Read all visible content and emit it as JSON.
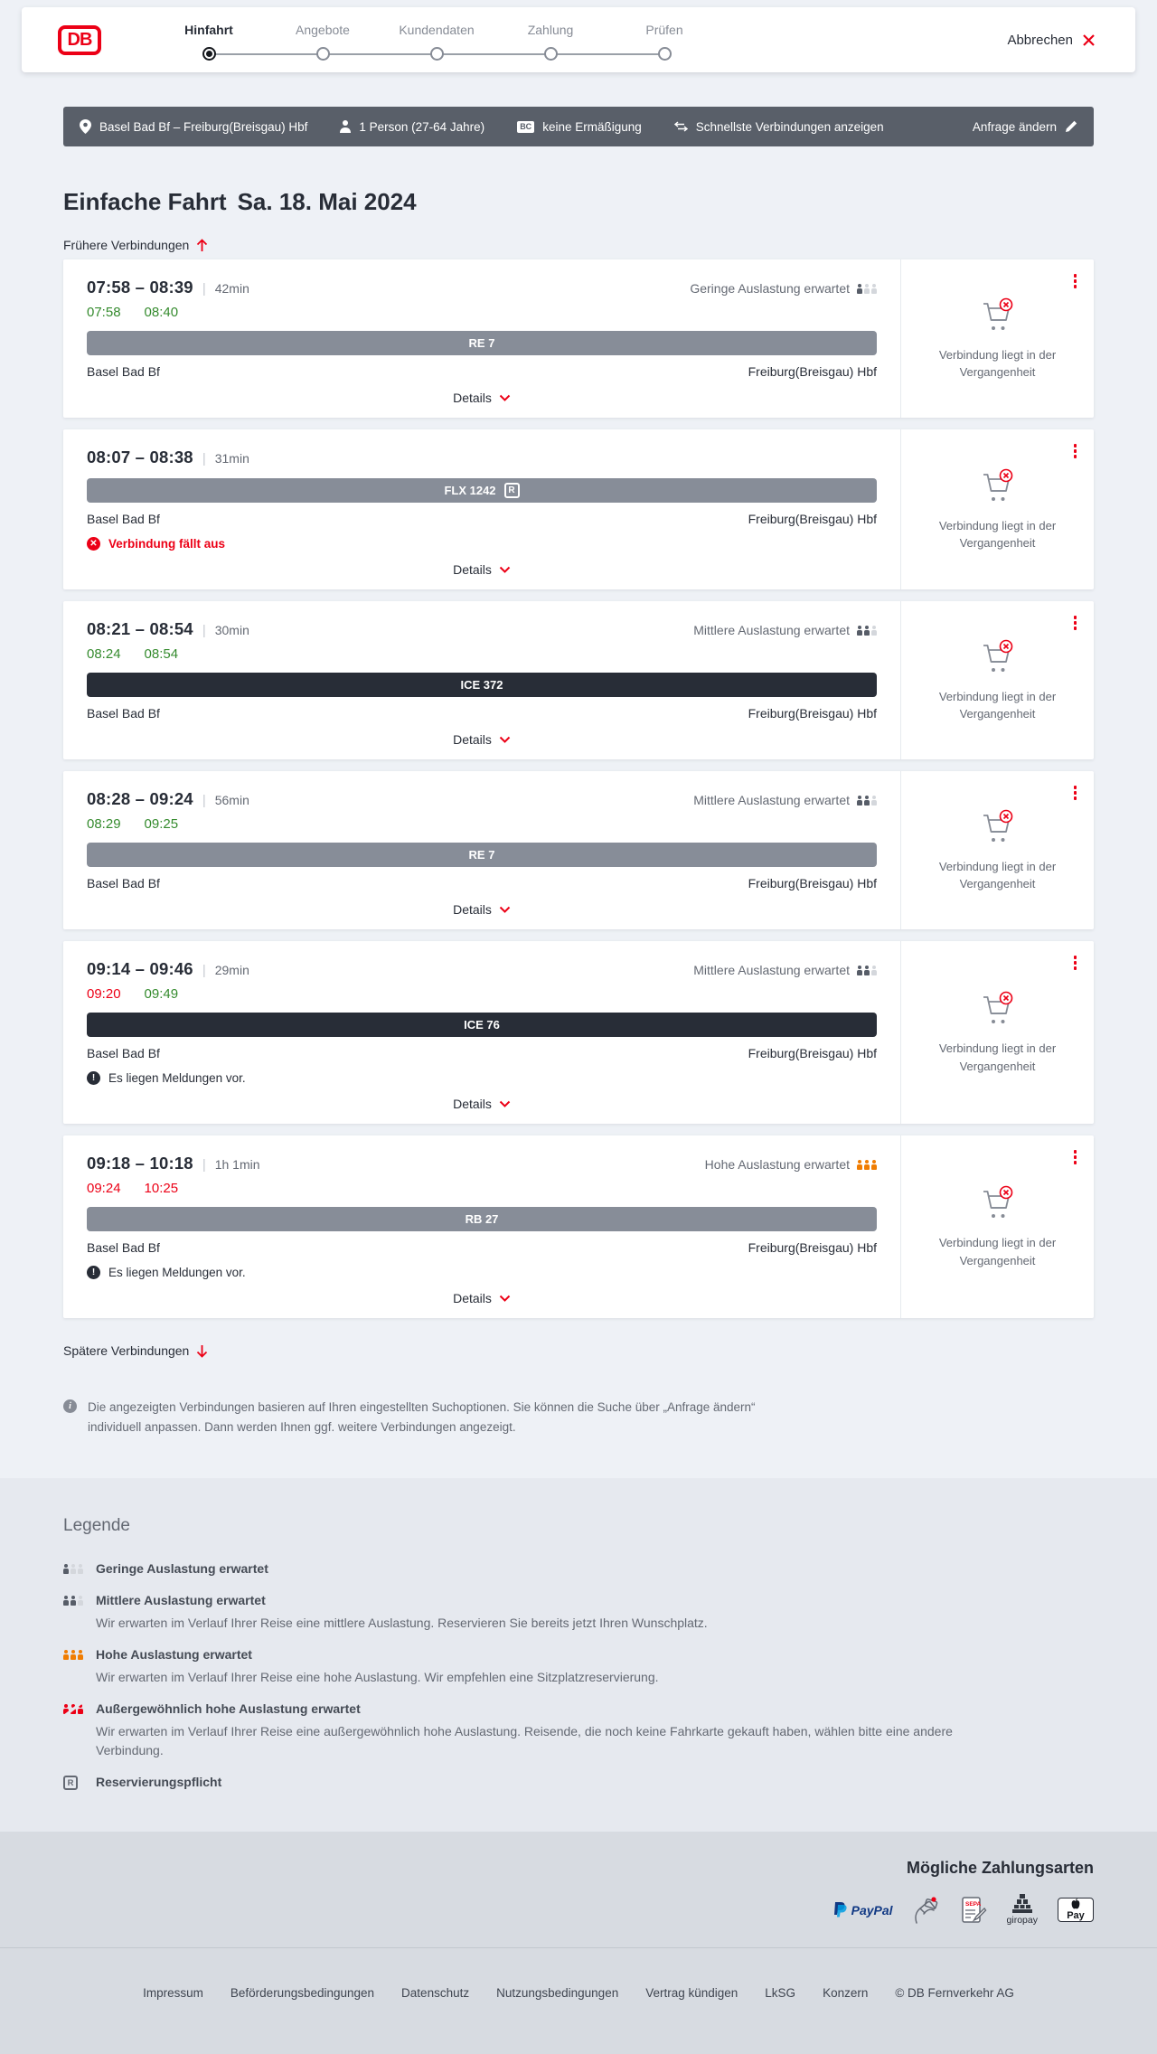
{
  "header": {
    "logo": "DB",
    "steps": [
      {
        "label": "Hinfahrt",
        "state": "active"
      },
      {
        "label": "Angebote",
        "state": "upcoming"
      },
      {
        "label": "Kundendaten",
        "state": "upcoming"
      },
      {
        "label": "Zahlung",
        "state": "upcoming"
      },
      {
        "label": "Prüfen",
        "state": "upcoming"
      }
    ],
    "cancel_label": "Abbrechen"
  },
  "search_bar": {
    "route": "Basel Bad Bf – Freiburg(Breisgau) Hbf",
    "passengers": "1 Person (27-64 Jahre)",
    "discount": "keine Ermäßigung",
    "fastest": "Schnellste Verbindungen anzeigen",
    "edit_label": "Anfrage ändern"
  },
  "badges": {
    "reservation": "R",
    "bahncard": "BC"
  },
  "main": {
    "title": "Einfache Fahrt",
    "date": "Sa. 18. Mai 2024",
    "earlier_label": "Frühere Verbindungen",
    "later_label": "Spätere Verbindungen",
    "details_label": "Details",
    "past_note": "Verbindung liegt in der Vergangenheit",
    "info_text": "Die angezeigten Verbindungen basieren auf Ihren eingestellten Suchoptionen. Sie können die Suche über „Anfrage ändern“ individuell anpassen. Dann werden Ihnen ggf. weitere Verbindungen angezeigt.",
    "connections": [
      {
        "time_range": "07:58 – 08:39",
        "duration": "42min",
        "occupancy_label": "Geringe Auslastung erwartet",
        "occupancy_level": 1,
        "rt_dep": "07:58",
        "rt_dep_state": "ontime",
        "rt_arr": "08:40",
        "rt_arr_state": "ontime",
        "train": "RE 7",
        "train_style": "gray",
        "reservation": false,
        "origin": "Basel Bad Bf",
        "destination": "Freiburg(Breisgau) Hbf",
        "alert_type": null,
        "alert_text": null
      },
      {
        "time_range": "08:07 – 08:38",
        "duration": "31min",
        "occupancy_label": null,
        "occupancy_level": 0,
        "rt_dep": null,
        "rt_dep_state": null,
        "rt_arr": null,
        "rt_arr_state": null,
        "train": "FLX 1242",
        "train_style": "gray",
        "reservation": true,
        "origin": "Basel Bad Bf",
        "destination": "Freiburg(Breisgau) Hbf",
        "alert_type": "cancel",
        "alert_text": "Verbindung fällt aus"
      },
      {
        "time_range": "08:21 – 08:54",
        "duration": "30min",
        "occupancy_label": "Mittlere Auslastung erwartet",
        "occupancy_level": 2,
        "rt_dep": "08:24",
        "rt_dep_state": "ontime",
        "rt_arr": "08:54",
        "rt_arr_state": "ontime",
        "train": "ICE 372",
        "train_style": "dark",
        "reservation": false,
        "origin": "Basel Bad Bf",
        "destination": "Freiburg(Breisgau) Hbf",
        "alert_type": null,
        "alert_text": null
      },
      {
        "time_range": "08:28 – 09:24",
        "duration": "56min",
        "occupancy_label": "Mittlere Auslastung erwartet",
        "occupancy_level": 2,
        "rt_dep": "08:29",
        "rt_dep_state": "ontime",
        "rt_arr": "09:25",
        "rt_arr_state": "ontime",
        "train": "RE 7",
        "train_style": "gray",
        "reservation": false,
        "origin": "Basel Bad Bf",
        "destination": "Freiburg(Breisgau) Hbf",
        "alert_type": null,
        "alert_text": null
      },
      {
        "time_range": "09:14 – 09:46",
        "duration": "29min",
        "occupancy_label": "Mittlere Auslastung erwartet",
        "occupancy_level": 2,
        "rt_dep": "09:20",
        "rt_dep_state": "delayed",
        "rt_arr": "09:49",
        "rt_arr_state": "ontime",
        "train": "ICE 76",
        "train_style": "dark",
        "reservation": false,
        "origin": "Basel Bad Bf",
        "destination": "Freiburg(Breisgau) Hbf",
        "alert_type": "info",
        "alert_text": "Es liegen Meldungen vor."
      },
      {
        "time_range": "09:18 – 10:18",
        "duration": "1h 1min",
        "occupancy_label": "Hohe Auslastung erwartet",
        "occupancy_level": 3,
        "rt_dep": "09:24",
        "rt_dep_state": "delayed",
        "rt_arr": "10:25",
        "rt_arr_state": "delayed",
        "train": "RB 27",
        "train_style": "gray",
        "reservation": false,
        "origin": "Basel Bad Bf",
        "destination": "Freiburg(Breisgau) Hbf",
        "alert_type": "info",
        "alert_text": "Es liegen Meldungen vor."
      }
    ]
  },
  "legend": {
    "heading": "Legende",
    "items": [
      {
        "icon": "occ-1",
        "title": "Geringe Auslastung erwartet",
        "desc": null
      },
      {
        "icon": "occ-2",
        "title": "Mittlere Auslastung erwartet",
        "desc": "Wir erwarten im Verlauf Ihrer Reise eine mittlere Auslastung. Reservieren Sie bereits jetzt Ihren Wunschplatz."
      },
      {
        "icon": "occ-3",
        "title": "Hohe Auslastung erwartet",
        "desc": "Wir erwarten im Verlauf Ihrer Reise eine hohe Auslastung. Wir empfehlen eine Sitzplatzreservierung."
      },
      {
        "icon": "occ-x",
        "title": "Außergewöhnlich hohe Auslastung erwartet",
        "desc": "Wir erwarten im Verlauf Ihrer Reise eine außergewöhnlich hohe Auslastung. Reisende, die noch keine Fahrkarte gekauft haben, wählen bitte eine andere Verbindung."
      },
      {
        "icon": "r-box",
        "title": "Reservierungspflicht",
        "desc": null
      }
    ]
  },
  "payment": {
    "title": "Mögliche Zahlungsarten",
    "methods": [
      {
        "name": "paypal",
        "label": "PayPal"
      },
      {
        "name": "credit-card",
        "label": ""
      },
      {
        "name": "sepa",
        "label": "SEPA"
      },
      {
        "name": "giropay",
        "label": "giropay"
      },
      {
        "name": "apple-pay",
        "label": "Pay"
      }
    ]
  },
  "footer": {
    "links": [
      "Impressum",
      "Beförderungsbedingungen",
      "Datenschutz",
      "Nutzungsbedingungen",
      "Vertrag kündigen",
      "LkSG",
      "Konzern"
    ],
    "copyright": "© DB Fernverkehr AG"
  },
  "colors": {
    "brand_red": "#ec0016",
    "ontime_green": "#358b2e",
    "delayed_red": "#ec0016",
    "occupancy_high_orange": "#f07d02",
    "bar_gray": "#878d98",
    "bar_dark": "#282d37",
    "search_bar_bg": "#595f69",
    "page_bg": "#eef1f6"
  }
}
